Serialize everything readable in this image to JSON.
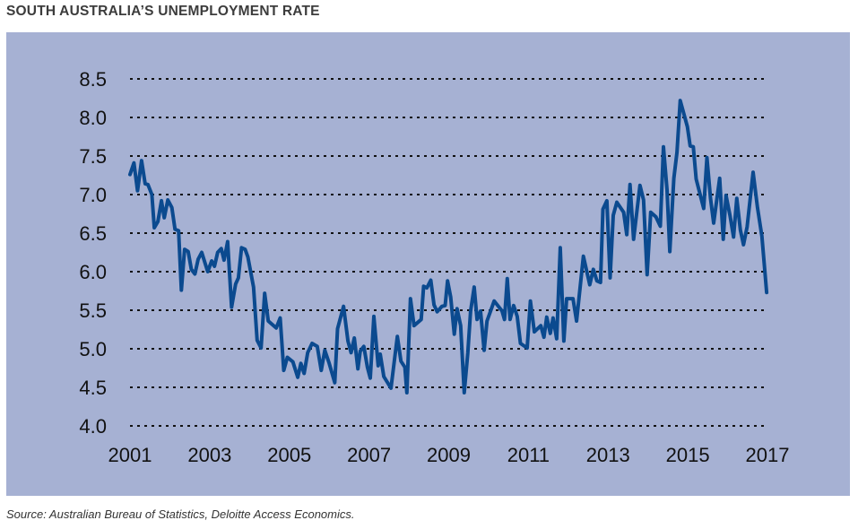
{
  "chart_data": {
    "type": "line",
    "title": "SOUTH AUSTRALIA’S UNEMPLOYMENT RATE",
    "source": "Source: Australian Bureau of Statistics, Deloitte Access Economics.",
    "xlabel": "",
    "ylabel": "",
    "xlim": [
      2001,
      2017
    ],
    "ylim": [
      4.0,
      8.5
    ],
    "x_ticks": [
      "2001",
      "2003",
      "2005",
      "2007",
      "2009",
      "2011",
      "2013",
      "2015",
      "2017"
    ],
    "y_ticks": [
      "4.0",
      "4.5",
      "5.0",
      "5.5",
      "6.0",
      "6.5",
      "7.0",
      "7.5",
      "8.0",
      "8.5"
    ],
    "grid": "horizontal dotted",
    "colors": {
      "background": "#a6b1d3",
      "line": "#0b4a8f",
      "grid": "#111111"
    },
    "series": [
      {
        "x": [
          2001.0,
          2001.1,
          2001.19,
          2001.29,
          2001.38,
          2001.45,
          2001.55,
          2001.61,
          2001.7,
          2001.79,
          2001.86,
          2001.95,
          2002.05,
          2002.13,
          2002.22,
          2002.29,
          2002.37,
          2002.46,
          2002.54,
          2002.63,
          2002.71,
          2002.8,
          2002.95,
          2003.05,
          2003.12,
          2003.2,
          2003.29,
          2003.36,
          2003.45,
          2003.55,
          2003.65,
          2003.72,
          2003.8,
          2003.89,
          2003.96,
          2004.1,
          2004.19,
          2004.29,
          2004.38,
          2004.47,
          2004.56,
          2004.67,
          2004.77,
          2004.86,
          2004.95,
          2005.09,
          2005.21,
          2005.29,
          2005.37,
          2005.46,
          2005.57,
          2005.7,
          2005.8,
          2005.89,
          2006.0,
          2006.14,
          2006.21,
          2006.36,
          2006.47,
          2006.55,
          2006.63,
          2006.72,
          2006.78,
          2006.87,
          2006.96,
          2007.03,
          2007.12,
          2007.23,
          2007.28,
          2007.37,
          2007.55,
          2007.71,
          2007.8,
          2007.9,
          2007.95,
          2008.04,
          2008.13,
          2008.31,
          2008.37,
          2008.45,
          2008.55,
          2008.63,
          2008.71,
          2008.83,
          2008.91,
          2008.97,
          2009.05,
          2009.14,
          2009.21,
          2009.3,
          2009.39,
          2009.48,
          2009.55,
          2009.64,
          2009.71,
          2009.8,
          2009.89,
          2009.96,
          2010.14,
          2010.34,
          2010.4,
          2010.47,
          2010.54,
          2010.63,
          2010.72,
          2010.8,
          2010.97,
          2011.05,
          2011.15,
          2011.31,
          2011.39,
          2011.46,
          2011.55,
          2011.62,
          2011.71,
          2011.8,
          2011.89,
          2011.96,
          2012.12,
          2012.21,
          2012.38,
          2012.54,
          2012.63,
          2012.72,
          2012.81,
          2012.87,
          2012.97,
          2013.05,
          2013.13,
          2013.22,
          2013.39,
          2013.47,
          2013.55,
          2013.64,
          2013.8,
          2013.89,
          2013.98,
          2014.07,
          2014.2,
          2014.31,
          2014.39,
          2014.48,
          2014.55,
          2014.65,
          2014.73,
          2014.81,
          2014.99,
          2015.06,
          2015.14,
          2015.21,
          2015.4,
          2015.48,
          2015.57,
          2015.65,
          2015.8,
          2015.89,
          2015.96,
          2016.06,
          2016.15,
          2016.23,
          2016.32,
          2016.4,
          2016.49,
          2016.64,
          2016.75,
          2016.86,
          2016.98
        ],
        "values": [
          7.26,
          7.41,
          7.05,
          7.44,
          7.14,
          7.13,
          7.0,
          6.57,
          6.65,
          6.92,
          6.7,
          6.93,
          6.83,
          6.55,
          6.53,
          5.76,
          6.29,
          6.26,
          6.03,
          5.97,
          6.16,
          6.25,
          6.0,
          6.14,
          6.07,
          6.25,
          6.3,
          6.15,
          6.39,
          5.54,
          5.84,
          5.92,
          6.31,
          6.29,
          6.19,
          5.8,
          5.11,
          5.01,
          5.72,
          5.36,
          5.32,
          5.27,
          5.4,
          4.72,
          4.89,
          4.83,
          4.63,
          4.81,
          4.68,
          4.95,
          5.07,
          5.03,
          4.72,
          4.98,
          4.81,
          4.56,
          5.26,
          5.55,
          5.1,
          4.95,
          5.14,
          4.74,
          4.97,
          5.03,
          4.76,
          4.62,
          5.42,
          4.78,
          4.93,
          4.64,
          4.49,
          5.16,
          4.84,
          4.76,
          4.43,
          5.65,
          5.3,
          5.38,
          5.81,
          5.79,
          5.89,
          5.57,
          5.48,
          5.55,
          5.56,
          5.88,
          5.67,
          5.19,
          5.52,
          5.3,
          4.43,
          4.95,
          5.49,
          5.8,
          5.38,
          5.49,
          4.98,
          5.36,
          5.62,
          5.49,
          5.38,
          5.91,
          5.38,
          5.56,
          5.42,
          5.07,
          5.01,
          5.62,
          5.22,
          5.3,
          5.15,
          5.41,
          5.2,
          5.4,
          5.13,
          6.31,
          5.1,
          5.65,
          5.65,
          5.36,
          6.2,
          5.83,
          6.03,
          5.88,
          5.86,
          6.81,
          6.92,
          5.92,
          6.73,
          6.9,
          6.77,
          6.48,
          7.13,
          6.42,
          7.12,
          6.93,
          5.96,
          6.77,
          6.71,
          6.59,
          7.62,
          7.06,
          6.26,
          7.21,
          7.55,
          8.22,
          7.88,
          7.63,
          7.62,
          7.2,
          6.82,
          7.48,
          6.95,
          6.63,
          7.21,
          6.42,
          6.99,
          6.73,
          6.45,
          6.95,
          6.54,
          6.35,
          6.58,
          7.29,
          6.83,
          6.46,
          5.73
        ]
      }
    ]
  }
}
